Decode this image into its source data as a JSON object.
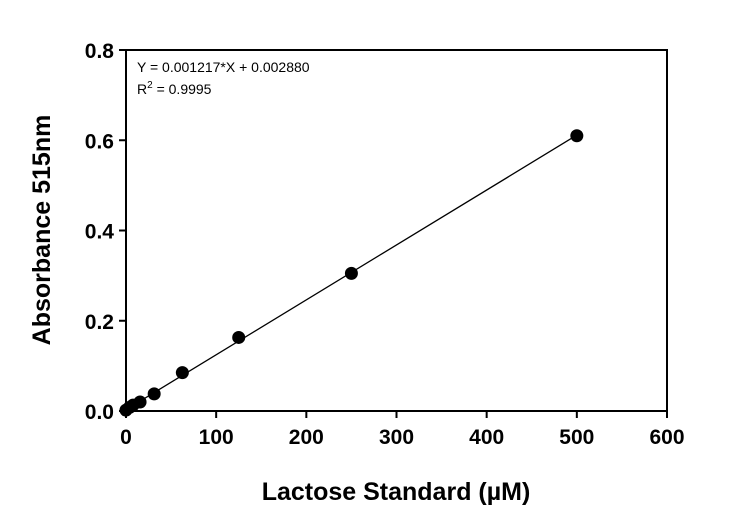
{
  "chart_data": {
    "type": "scatter",
    "xlabel": "Lactose Standard (µM)",
    "ylabel": "Absorbance 515nm",
    "xlim": [
      0,
      600
    ],
    "ylim": [
      0,
      0.8
    ],
    "xticks": [
      "0",
      "100",
      "200",
      "300",
      "400",
      "500",
      "600"
    ],
    "yticks": [
      "0.0",
      "0.2",
      "0.4",
      "0.6",
      "0.8"
    ],
    "grid": false,
    "series": [
      {
        "x": [
          0,
          3.9,
          7.8,
          15.6,
          31.25,
          62.5,
          125,
          250,
          500
        ],
        "y": [
          0.002,
          0.008,
          0.013,
          0.02,
          0.038,
          0.085,
          0.163,
          0.305,
          0.61
        ]
      }
    ],
    "fit": {
      "slope": 0.001217,
      "intercept": 0.00288
    },
    "annotations": {
      "equation": "Y = 0.001217*X + 0.002880",
      "r2_prefix": "R",
      "r2_sup": "2",
      "r2_value": " = 0.9995"
    }
  }
}
